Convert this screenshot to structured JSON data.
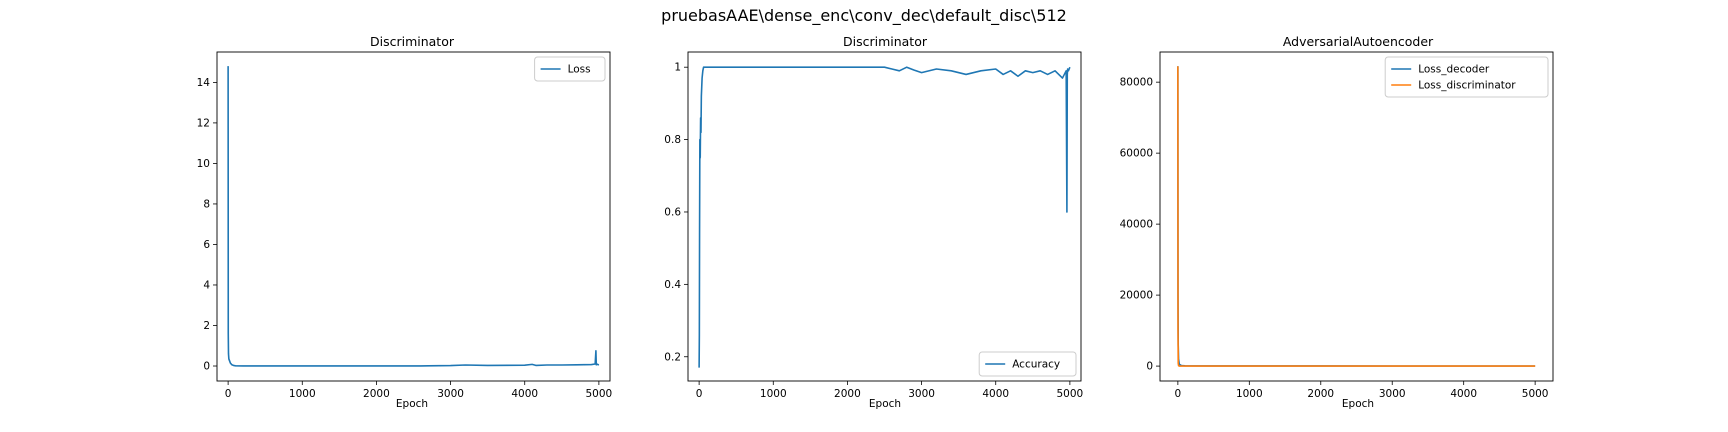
{
  "suptitle": "pruebasAAE\\dense_enc\\conv_dec\\default_disc\\512",
  "colors": {
    "series1": "#1f77b4",
    "series2": "#ff7f0e",
    "axis": "#000000",
    "legend_border": "#cccccc"
  },
  "chart_data": [
    {
      "type": "line",
      "title": "Discriminator",
      "xlabel": "Epoch",
      "ylabel": "",
      "xlim": [
        -150,
        5150
      ],
      "ylim": [
        -0.74,
        15.5
      ],
      "xticks": [
        0,
        1000,
        2000,
        3000,
        4000,
        5000
      ],
      "yticks": [
        0,
        2,
        4,
        6,
        8,
        10,
        12,
        14
      ],
      "grid": false,
      "legend_position": "upper-right",
      "series": [
        {
          "name": "Loss",
          "x": [
            0,
            2,
            5,
            10,
            15,
            20,
            30,
            50,
            80,
            100,
            200,
            500,
            1000,
            2000,
            2600,
            2700,
            3000,
            3200,
            3500,
            4000,
            4100,
            4150,
            4300,
            4500,
            4700,
            4900,
            4950,
            4960,
            4965,
            4970,
            5000
          ],
          "y": [
            14.8,
            1.6,
            0.6,
            0.35,
            0.3,
            0.25,
            0.15,
            0.06,
            0.02,
            0.01,
            0.005,
            0.003,
            0.002,
            0.002,
            0.004,
            0.01,
            0.02,
            0.05,
            0.03,
            0.04,
            0.08,
            0.03,
            0.05,
            0.05,
            0.06,
            0.07,
            0.1,
            0.75,
            0.06,
            0.1,
            0.05
          ]
        }
      ]
    },
    {
      "type": "line",
      "title": "Discriminator",
      "xlabel": "Epoch",
      "ylabel": "",
      "xlim": [
        -150,
        5150
      ],
      "ylim": [
        0.133,
        1.042
      ],
      "xticks": [
        0,
        1000,
        2000,
        3000,
        4000,
        5000
      ],
      "yticks": [
        0.2,
        0.4,
        0.6,
        0.8,
        1.0
      ],
      "grid": false,
      "legend_position": "lower-right",
      "series": [
        {
          "name": "Accuracy",
          "x": [
            0,
            3,
            6,
            10,
            15,
            20,
            25,
            30,
            40,
            50,
            60,
            80,
            100,
            200,
            500,
            1000,
            2000,
            2500,
            2600,
            2700,
            2800,
            2900,
            3000,
            3200,
            3400,
            3600,
            3800,
            4000,
            4100,
            4200,
            4300,
            4400,
            4500,
            4600,
            4700,
            4800,
            4900,
            4950,
            4960,
            4965,
            4970,
            4980,
            5000
          ],
          "y": [
            0.17,
            0.26,
            0.55,
            0.8,
            0.75,
            0.86,
            0.82,
            0.92,
            0.97,
            0.99,
            1.0,
            1.0,
            1.0,
            1.0,
            1.0,
            1.0,
            1.0,
            1.0,
            0.995,
            0.99,
            1.0,
            0.992,
            0.985,
            0.995,
            0.99,
            0.98,
            0.99,
            0.995,
            0.98,
            0.99,
            0.975,
            0.99,
            0.985,
            0.99,
            0.98,
            0.99,
            0.97,
            0.99,
            0.6,
            0.98,
            0.995,
            0.99,
            1.0
          ]
        }
      ]
    },
    {
      "type": "line",
      "title": "AdversarialAutoencoder",
      "xlabel": "Epoch",
      "ylabel": "",
      "xlim": [
        -250,
        5250
      ],
      "ylim": [
        -4200,
        88500
      ],
      "xticks": [
        0,
        1000,
        2000,
        3000,
        4000,
        5000
      ],
      "yticks": [
        0,
        20000,
        40000,
        60000,
        80000
      ],
      "grid": false,
      "legend_position": "upper-right",
      "series": [
        {
          "name": "Loss_decoder",
          "x": [
            0,
            2,
            5,
            10,
            20,
            50,
            100,
            500,
            1000,
            2000,
            3000,
            4000,
            5000
          ],
          "y": [
            84500,
            20000,
            6000,
            2000,
            500,
            150,
            80,
            50,
            40,
            35,
            30,
            30,
            30
          ]
        },
        {
          "name": "Loss_discriminator",
          "x": [
            0,
            2,
            5,
            10,
            20,
            50,
            100,
            500,
            1000,
            2000,
            3000,
            4000,
            5000
          ],
          "y": [
            84500,
            10000,
            800,
            100,
            20,
            5,
            2,
            1,
            1,
            1,
            1,
            1,
            1
          ]
        }
      ]
    }
  ]
}
